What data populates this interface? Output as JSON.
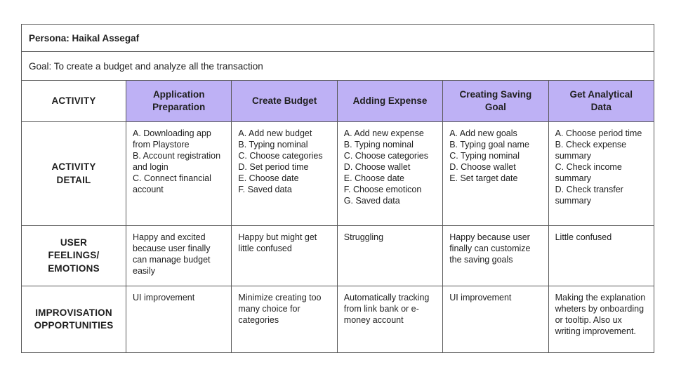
{
  "persona": "Persona: Haikal Assegaf",
  "goal": "Goal: To create a budget and analyze all the transaction",
  "colors": {
    "header_purple": "#beb1f5",
    "border": "#595959",
    "text": "#1f1f1f",
    "background": "#ffffff"
  },
  "table": {
    "activity_label": "ACTIVITY",
    "row_headers": {
      "detail": "ACTIVITY\nDETAIL",
      "feelings": "USER\nFEELINGS/\nEMOTIONS",
      "opportunities": "IMPROVISATION\nOPPORTUNITIES"
    },
    "columns": [
      "Application\nPreparation",
      "Create Budget",
      "Adding Expense",
      "Creating Saving\nGoal",
      "Get Analytical\nData"
    ],
    "activity_detail": [
      "A. Downloading app from Playstore\nB. Account registration and login\nC. Connect financial account",
      "A. Add new budget\nB. Typing nominal\nC. Choose categories\nD. Set period time\nE. Choose date\nF. Saved data",
      "A. Add new expense\nB. Typing nominal\nC. Choose categories\nD. Choose wallet\nE. Choose date\nF. Choose emoticon\nG. Saved data",
      "A. Add new goals\nB. Typing goal name\nC. Typing nominal\nD. Choose wallet\nE. Set target date",
      "A. Choose period time\nB. Check expense summary\nC. Check income summary\nD. Check transfer summary"
    ],
    "feelings": [
      "Happy and excited because user finally can manage budget easily",
      "Happy but might get little confused",
      "Struggling",
      "Happy because user finally can customize the saving goals",
      "Little confused"
    ],
    "opportunities": [
      "UI improvement",
      "Minimize creating too many choice for categories",
      "Automatically tracking from link bank or e-money account",
      "UI improvement",
      "Making the explanation wheters by onboarding or tooltip. Also ux writing improvement."
    ]
  }
}
